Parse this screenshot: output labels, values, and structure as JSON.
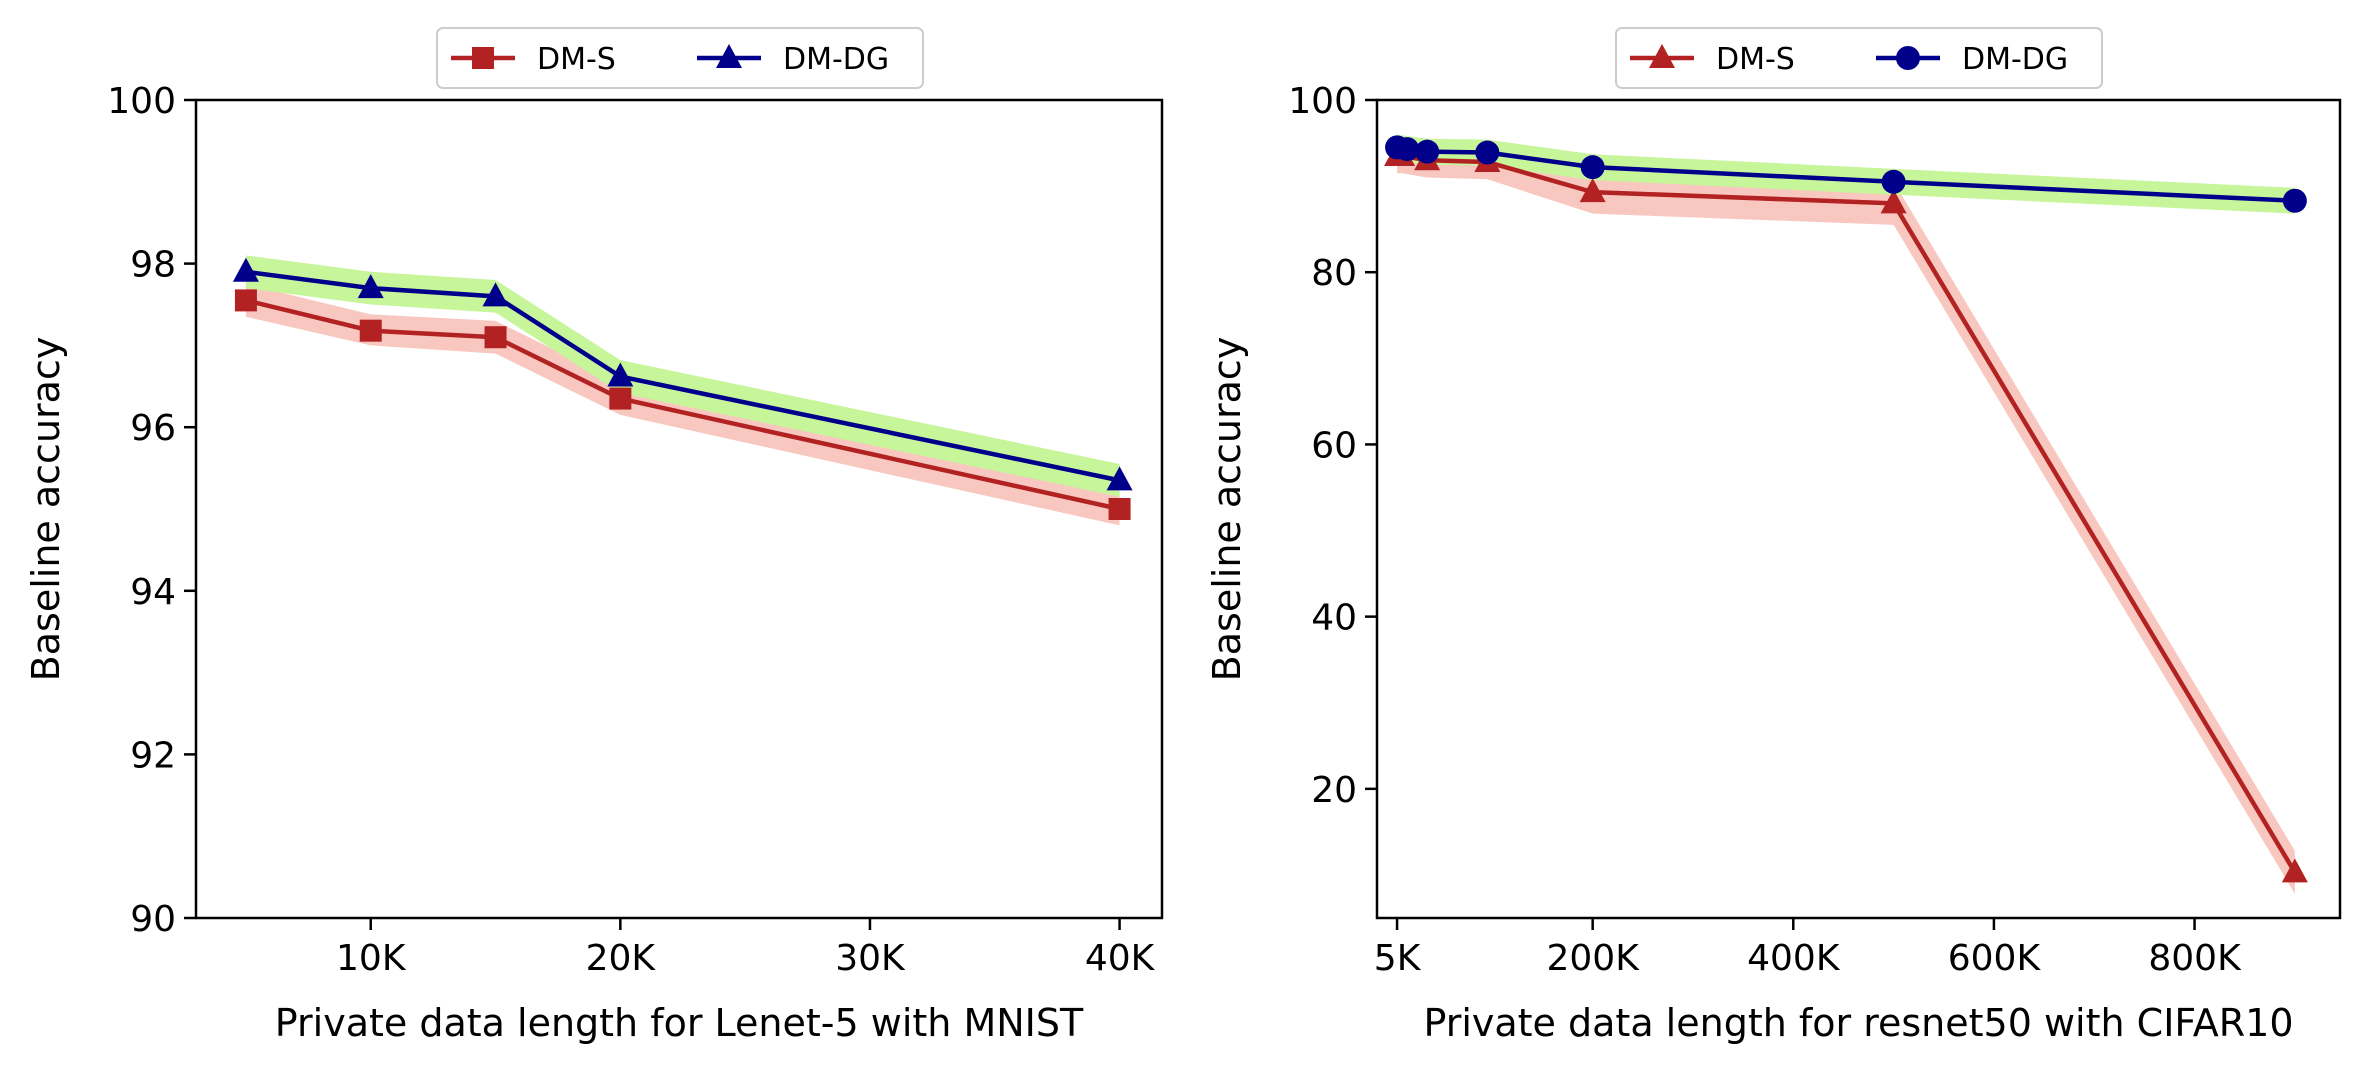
{
  "chart_data": [
    {
      "type": "line",
      "title": "",
      "xlabel": "Private data length for Lenet-5 with MNIST",
      "ylabel": "Baseline accuracy",
      "xlim": [
        3000,
        41700
      ],
      "ylim": [
        90,
        100
      ],
      "xticks": [
        10000,
        20000,
        30000,
        40000
      ],
      "xtick_labels": [
        "10K",
        "20K",
        "30K",
        "40K"
      ],
      "yticks": [
        90,
        92,
        94,
        96,
        98,
        100
      ],
      "ytick_labels": [
        "90",
        "92",
        "94",
        "96",
        "98",
        "100"
      ],
      "legend": {
        "placement": "top-center, above plot",
        "entries": [
          "DM-S",
          "DM-DG"
        ]
      },
      "series": [
        {
          "name": "DM-S",
          "marker": "square",
          "color": "#b22222",
          "band_color": "#f8c8c0",
          "x": [
            5000,
            10000,
            15000,
            20000,
            40000
          ],
          "values": [
            97.55,
            97.18,
            97.1,
            96.35,
            95.0
          ],
          "band_lower": [
            97.35,
            97.0,
            96.9,
            96.15,
            94.8
          ],
          "band_upper": [
            97.75,
            97.38,
            97.3,
            96.55,
            95.2
          ]
        },
        {
          "name": "DM-DG",
          "marker": "triangle",
          "color": "#00008b",
          "band_color": "#c6f59a",
          "x": [
            5000,
            10000,
            15000,
            20000,
            40000
          ],
          "values": [
            97.9,
            97.7,
            97.6,
            96.62,
            95.35
          ],
          "band_lower": [
            97.7,
            97.5,
            97.4,
            96.42,
            95.15
          ],
          "band_upper": [
            98.1,
            97.9,
            97.8,
            96.82,
            95.55
          ]
        }
      ]
    },
    {
      "type": "line",
      "title": "",
      "xlabel": "Private data length for resnet50 with CIFAR10",
      "ylabel": "Baseline accuracy",
      "xlim": [
        -15000,
        945000
      ],
      "ylim": [
        5,
        100
      ],
      "xticks": [
        5000,
        200000,
        400000,
        600000,
        800000
      ],
      "xtick_labels": [
        "5K",
        "200K",
        "400K",
        "600K",
        "800K"
      ],
      "yticks": [
        20,
        40,
        60,
        80,
        100
      ],
      "ytick_labels": [
        "20",
        "40",
        "60",
        "80",
        "100"
      ],
      "legend": {
        "placement": "top-center, above plot",
        "entries": [
          "DM-S",
          "DM-DG"
        ]
      },
      "series": [
        {
          "name": "DM-S",
          "marker": "triangle",
          "color": "#b22222",
          "band_color": "#f8c8c0",
          "x": [
            5000,
            10000,
            35000,
            95000,
            200000,
            500000,
            900000
          ],
          "values": [
            93.5,
            93.5,
            93.0,
            92.8,
            89.3,
            88.0,
            10.3
          ],
          "band_lower": [
            91.5,
            91.5,
            91.0,
            90.8,
            86.8,
            85.5,
            7.8
          ],
          "band_upper": [
            95.5,
            95.5,
            95.0,
            94.8,
            91.8,
            90.5,
            12.8
          ]
        },
        {
          "name": "DM-DG",
          "marker": "circle",
          "color": "#00008b",
          "band_color": "#c6f59a",
          "x": [
            5000,
            15000,
            35000,
            95000,
            200000,
            500000,
            900000
          ],
          "values": [
            94.5,
            94.3,
            94.0,
            93.9,
            92.2,
            90.5,
            88.3
          ],
          "band_lower": [
            93.0,
            92.8,
            92.5,
            92.4,
            90.7,
            89.0,
            86.8
          ],
          "band_upper": [
            96.0,
            95.8,
            95.5,
            95.4,
            93.7,
            92.0,
            89.8
          ]
        }
      ]
    }
  ]
}
